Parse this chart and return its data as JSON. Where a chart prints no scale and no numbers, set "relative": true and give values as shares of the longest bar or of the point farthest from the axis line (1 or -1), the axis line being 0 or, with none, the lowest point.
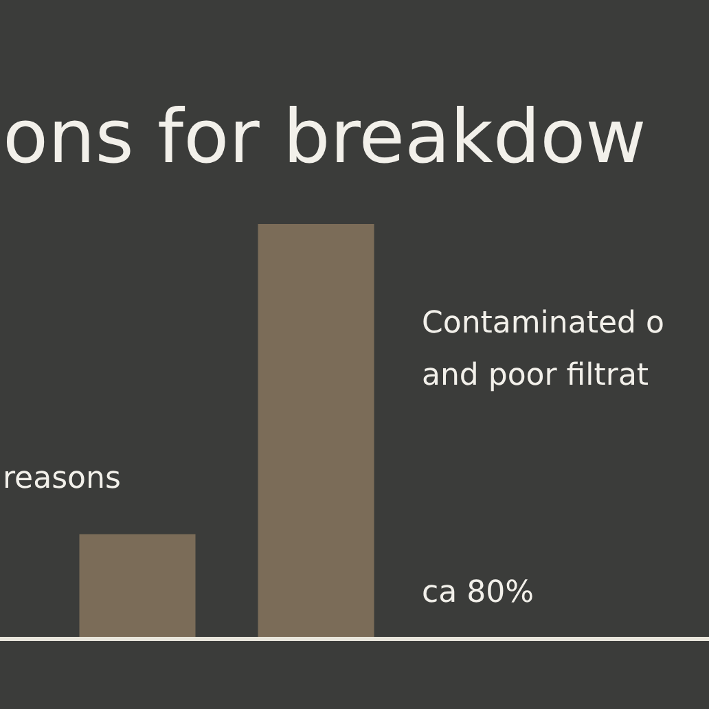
{
  "chart_data": {
    "type": "bar",
    "title": "ons for breakdow",
    "categories": [
      null,
      null
    ],
    "values": [
      0.25,
      1
    ],
    "color": "#7b6c58",
    "relative": true,
    "legend": false,
    "annotations": [
      "reasons",
      "Contaminated o\nand poor filtrat",
      "ca 80%"
    ]
  }
}
